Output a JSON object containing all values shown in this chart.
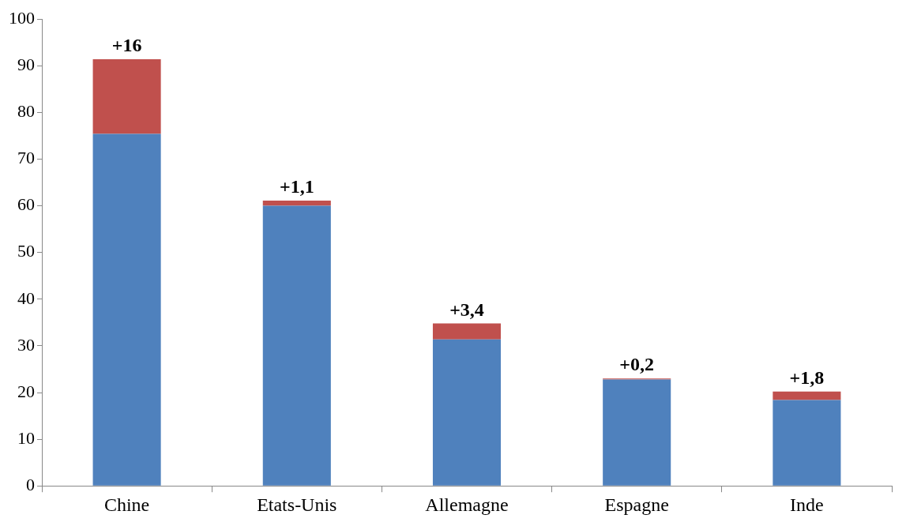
{
  "chart_data": {
    "type": "bar",
    "stacked": true,
    "categories": [
      "Chine",
      "Etats-Unis",
      "Allemagne",
      "Espagne",
      "Inde"
    ],
    "series": [
      {
        "color": "#4f81bd",
        "values": [
          75.4,
          60,
          31.4,
          22.8,
          18.4
        ]
      },
      {
        "color": "#c0504d",
        "values": [
          16,
          1.1,
          3.4,
          0.2,
          1.8
        ],
        "value_labels": [
          "+16",
          "+1,1",
          "+3,4",
          "+0,2",
          "+1,8"
        ]
      }
    ],
    "ylim": [
      0,
      100
    ],
    "yticks": [
      0,
      10,
      20,
      30,
      40,
      50,
      60,
      70,
      80,
      90,
      100
    ]
  }
}
